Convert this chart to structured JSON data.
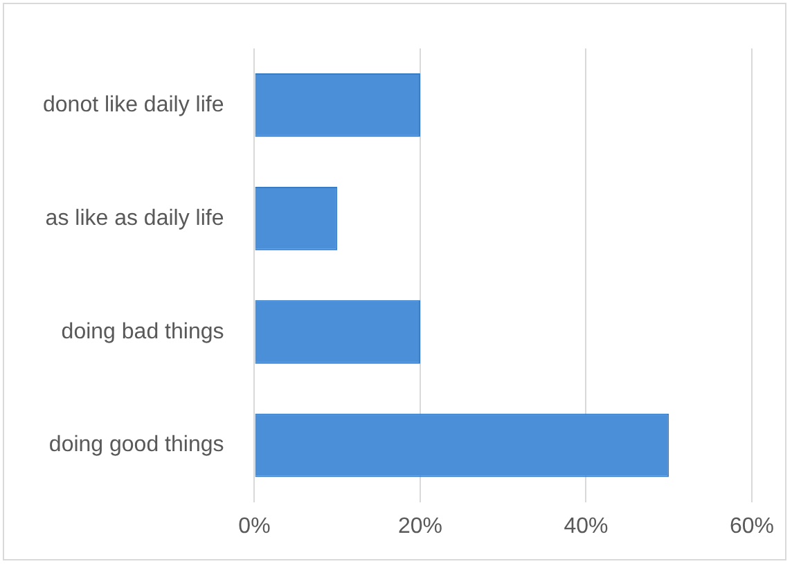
{
  "chart_data": {
    "type": "bar",
    "orientation": "horizontal",
    "categories": [
      "donot like daily life",
      "as like as daily life",
      "doing bad things",
      "doing good things"
    ],
    "values": [
      20,
      10,
      20,
      50
    ],
    "color": "#4a8fd8",
    "xlim": [
      0,
      60
    ],
    "xticks": [
      {
        "value": 0,
        "label": "0%"
      },
      {
        "value": 20,
        "label": "20%"
      },
      {
        "value": 40,
        "label": "40%"
      },
      {
        "value": 60,
        "label": "60%"
      }
    ],
    "grid": "x",
    "legend": false
  }
}
